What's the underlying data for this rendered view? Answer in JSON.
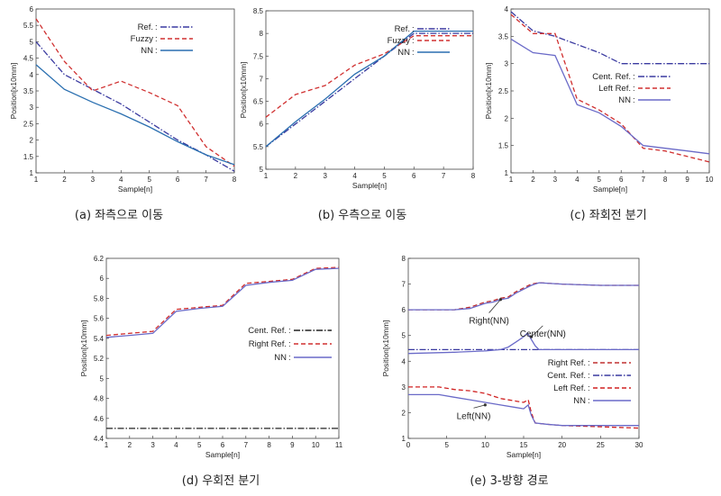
{
  "chart_data": [
    {
      "id": "a",
      "type": "line",
      "caption": "(a) 좌측으로 이동",
      "xlabel": "Sample[n]",
      "ylabel": "Position[x10mm]",
      "xlim": [
        1,
        8
      ],
      "ylim": [
        1,
        6
      ],
      "xticks": [
        1,
        2,
        3,
        4,
        5,
        6,
        7,
        8
      ],
      "yticks": [
        1,
        1.5,
        2,
        2.5,
        3,
        3.5,
        4,
        4.5,
        5,
        5.5,
        6
      ],
      "legend_position": "top-right",
      "series": [
        {
          "name": "Ref.",
          "color": "#3a3aa0",
          "style": "dashdot",
          "x": [
            1,
            2,
            3,
            4,
            5,
            6,
            7,
            8
          ],
          "y": [
            5.0,
            4.0,
            3.55,
            3.1,
            2.55,
            2.0,
            1.55,
            1.05
          ]
        },
        {
          "name": "Fuzzy",
          "color": "#d03030",
          "style": "dashed",
          "x": [
            1,
            2,
            3,
            4,
            5,
            6,
            7,
            8
          ],
          "y": [
            5.7,
            4.4,
            3.5,
            3.8,
            3.45,
            3.05,
            1.8,
            1.2
          ]
        },
        {
          "name": "NN",
          "color": "#2a6fb0",
          "style": "solid",
          "x": [
            1,
            2,
            3,
            4,
            5,
            6,
            7,
            8
          ],
          "y": [
            4.3,
            3.55,
            3.15,
            2.8,
            2.4,
            1.95,
            1.55,
            1.25
          ]
        }
      ]
    },
    {
      "id": "b",
      "type": "line",
      "caption": "(b) 우측으로 이동",
      "xlabel": "Sample[n]",
      "ylabel": "Position[x10mm]",
      "xlim": [
        1,
        8
      ],
      "ylim": [
        5,
        8.5
      ],
      "xticks": [
        1,
        2,
        3,
        4,
        5,
        6,
        7,
        8
      ],
      "yticks": [
        5,
        5.5,
        6,
        6.5,
        7,
        7.5,
        8,
        8.5
      ],
      "legend_position": "top-right",
      "series": [
        {
          "name": "Ref.",
          "color": "#3a3aa0",
          "style": "dashdot",
          "x": [
            1,
            2,
            3,
            4,
            5,
            6,
            7,
            8
          ],
          "y": [
            5.5,
            6.0,
            6.5,
            7.0,
            7.5,
            8.0,
            8.0,
            8.0
          ]
        },
        {
          "name": "Fuzzy",
          "color": "#d03030",
          "style": "dashed",
          "x": [
            1,
            2,
            3,
            4,
            5,
            6,
            7,
            8
          ],
          "y": [
            6.15,
            6.65,
            6.85,
            7.3,
            7.55,
            7.95,
            7.95,
            7.95
          ]
        },
        {
          "name": "NN",
          "color": "#2a6fb0",
          "style": "solid",
          "x": [
            1,
            2,
            3,
            4,
            5,
            6,
            7,
            8
          ],
          "y": [
            5.5,
            6.05,
            6.55,
            7.1,
            7.5,
            8.05,
            8.05,
            8.05
          ]
        }
      ]
    },
    {
      "id": "c",
      "type": "line",
      "caption": "(c) 좌회전 분기",
      "xlabel": "Sample[n]",
      "ylabel": "Position[x10mm]",
      "xlim": [
        1,
        10
      ],
      "ylim": [
        1,
        4
      ],
      "xticks": [
        1,
        2,
        3,
        4,
        5,
        6,
        7,
        8,
        9,
        10
      ],
      "yticks": [
        1,
        1.5,
        2,
        2.5,
        3,
        3.5,
        4
      ],
      "legend_position": "top-right",
      "series": [
        {
          "name": "Cent. Ref.",
          "color": "#3a3aa0",
          "style": "dashdot",
          "x": [
            1,
            2,
            3,
            4,
            5,
            6,
            7,
            8,
            9,
            10
          ],
          "y": [
            3.95,
            3.6,
            3.5,
            3.35,
            3.2,
            3.0,
            3.0,
            3.0,
            3.0,
            3.0
          ]
        },
        {
          "name": "Left Ref.",
          "color": "#d03030",
          "style": "dashed",
          "x": [
            1,
            2,
            3,
            4,
            5,
            6,
            7,
            8,
            9,
            10
          ],
          "y": [
            3.9,
            3.55,
            3.55,
            2.35,
            2.15,
            1.9,
            1.45,
            1.4,
            1.3,
            1.2
          ]
        },
        {
          "name": "NN",
          "color": "#6a6ac8",
          "style": "solid",
          "x": [
            1,
            2,
            3,
            4,
            5,
            6,
            7,
            8,
            9,
            10
          ],
          "y": [
            3.45,
            3.2,
            3.15,
            2.25,
            2.1,
            1.85,
            1.5,
            1.45,
            1.4,
            1.35
          ]
        }
      ]
    },
    {
      "id": "d",
      "type": "line",
      "caption": "(d) 우회전 분기",
      "xlabel": "Sample[n]",
      "ylabel": "Position[x10mm]",
      "xlim": [
        1,
        11
      ],
      "ylim": [
        4.4,
        6.2
      ],
      "xticks": [
        1,
        2,
        3,
        4,
        5,
        6,
        7,
        8,
        9,
        10,
        11
      ],
      "yticks": [
        4.4,
        4.6,
        4.8,
        5,
        5.2,
        5.4,
        5.6,
        5.8,
        6,
        6.2
      ],
      "legend_position": "center-right",
      "series": [
        {
          "name": "Cent. Ref.",
          "color": "#222222",
          "style": "dashdot",
          "x": [
            1,
            11
          ],
          "y": [
            4.5,
            4.5
          ]
        },
        {
          "name": "Right Ref.",
          "color": "#d03030",
          "style": "dashed",
          "x": [
            1,
            2,
            3,
            4,
            5,
            6,
            7,
            8,
            9,
            10,
            11
          ],
          "y": [
            5.43,
            5.45,
            5.47,
            5.69,
            5.71,
            5.73,
            5.95,
            5.97,
            5.99,
            6.1,
            6.11
          ]
        },
        {
          "name": "NN",
          "color": "#6a6ac8",
          "style": "solid",
          "x": [
            1,
            2,
            3,
            4,
            5,
            6,
            7,
            8,
            9,
            10,
            11
          ],
          "y": [
            5.41,
            5.43,
            5.45,
            5.67,
            5.7,
            5.72,
            5.93,
            5.96,
            5.98,
            6.09,
            6.1
          ]
        }
      ]
    },
    {
      "id": "e",
      "type": "line",
      "caption": "(e) 3-방향 경로",
      "xlabel": "Sample[n]",
      "ylabel": "Position[x10mm]",
      "xlim": [
        0,
        30
      ],
      "ylim": [
        1,
        8
      ],
      "xticks": [
        0,
        5,
        10,
        15,
        20,
        25,
        30
      ],
      "yticks": [
        1,
        2,
        3,
        4,
        5,
        6,
        7,
        8
      ],
      "legend_position": "center-right",
      "annotations": [
        {
          "text": "Right(NN)",
          "x": 10.5,
          "y": 5.6,
          "arrow_to": [
            12,
            6.4
          ]
        },
        {
          "text": "Center(NN)",
          "x": 17.5,
          "y": 5.1,
          "arrow_to": [
            16,
            4.95
          ]
        },
        {
          "text": "Left(NN)",
          "x": 8.5,
          "y": 1.9,
          "arrow_to": [
            10,
            2.3
          ]
        }
      ],
      "series": [
        {
          "name": "Right Ref.",
          "color": "#c03030",
          "style": "dashed",
          "x": [
            0,
            6,
            8,
            10,
            11,
            12,
            13,
            14,
            15,
            16,
            17,
            20,
            25,
            30
          ],
          "y": [
            6.0,
            6.0,
            6.1,
            6.3,
            6.35,
            6.45,
            6.5,
            6.7,
            6.85,
            7.0,
            7.05,
            7.0,
            6.95,
            6.95
          ]
        },
        {
          "name": "Cent. Ref.",
          "color": "#3a3aa0",
          "style": "dashdot",
          "x": [
            0,
            30
          ],
          "y": [
            4.45,
            4.45
          ]
        },
        {
          "name": "Left Ref.",
          "color": "#d02020",
          "style": "dashed",
          "x": [
            0,
            4,
            6,
            8,
            10,
            12,
            14,
            15,
            15.6,
            16,
            16.5,
            18,
            20,
            25,
            30
          ],
          "y": [
            3.0,
            3.0,
            2.9,
            2.85,
            2.75,
            2.55,
            2.45,
            2.4,
            2.5,
            2.0,
            1.6,
            1.55,
            1.5,
            1.45,
            1.4
          ]
        },
        {
          "name": "NN",
          "color": "#6a6ac8",
          "style": "solid",
          "x": [
            0,
            6,
            8,
            10,
            11,
            12,
            13,
            14,
            15,
            16,
            17,
            20,
            25,
            30
          ],
          "y": [
            6.0,
            6.0,
            6.05,
            6.25,
            6.3,
            6.4,
            6.45,
            6.65,
            6.8,
            6.95,
            7.05,
            7.0,
            6.95,
            6.95
          ]
        },
        {
          "name": "NN-center",
          "color": "#6a6ac8",
          "style": "solid",
          "legend": false,
          "x": [
            0,
            6,
            10,
            12,
            13,
            14,
            15,
            15.5,
            16,
            16.5,
            17,
            18,
            20,
            25,
            30
          ],
          "y": [
            4.3,
            4.35,
            4.4,
            4.45,
            4.55,
            4.75,
            4.95,
            5.1,
            4.85,
            4.6,
            4.45,
            4.45,
            4.45,
            4.45,
            4.45
          ]
        },
        {
          "name": "NN-left",
          "color": "#6a6ac8",
          "style": "solid",
          "legend": false,
          "x": [
            0,
            4,
            6,
            8,
            10,
            12,
            14,
            15,
            15.6,
            16,
            16.5,
            18,
            20,
            25,
            30
          ],
          "y": [
            2.7,
            2.7,
            2.6,
            2.5,
            2.4,
            2.3,
            2.2,
            2.15,
            2.3,
            1.9,
            1.6,
            1.55,
            1.5,
            1.5,
            1.5
          ]
        }
      ]
    }
  ]
}
